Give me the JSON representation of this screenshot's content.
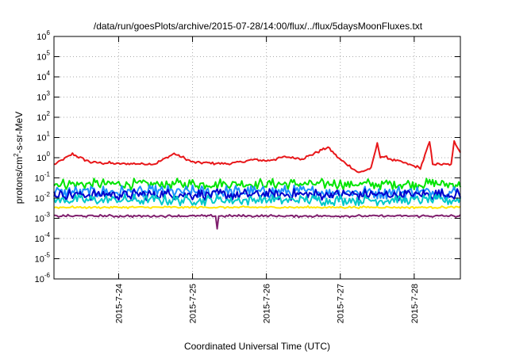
{
  "chart_data": {
    "type": "line",
    "title": "/data/run/goesPlots/archive/2015-07-28/14:00/flux/../flux/5daysMoonFluxes.txt",
    "xlabel": "Coordinated Universal Time (UTC)",
    "ylabel": {
      "pre": "protons/cm",
      "sup": "2",
      "post": "-s-sr-MeV"
    },
    "yscale": "log",
    "ylim": [
      1e-06,
      1000000.0
    ],
    "yticks": [
      {
        "base": "10",
        "exp": "-6"
      },
      {
        "base": "10",
        "exp": "-5"
      },
      {
        "base": "10",
        "exp": "-4"
      },
      {
        "base": "10",
        "exp": "-3"
      },
      {
        "base": "10",
        "exp": "-2"
      },
      {
        "base": "10",
        "exp": "-1"
      },
      {
        "base": "10",
        "exp": "0"
      },
      {
        "base": "10",
        "exp": "1"
      },
      {
        "base": "10",
        "exp": "2"
      },
      {
        "base": "10",
        "exp": "3"
      },
      {
        "base": "10",
        "exp": "4"
      },
      {
        "base": "10",
        "exp": "5"
      },
      {
        "base": "10",
        "exp": "6"
      }
    ],
    "xlim": [
      "2015-07-23T03:00",
      "2015-07-28T15:00"
    ],
    "xticks": [
      "2015-7-24",
      "2015-7-25",
      "2015-7-26",
      "2015-7-27",
      "2015-7-28"
    ],
    "grid": true,
    "legend": "none",
    "series": [
      {
        "color": "#e8171a",
        "base": 0.5,
        "noise": 0.09,
        "period": 4,
        "points": [
          [
            "2015-07-23T03:00",
            0.45
          ],
          [
            "2015-07-23T09:00",
            1.5
          ],
          [
            "2015-07-23T15:00",
            0.6
          ],
          [
            "2015-07-24T00:00",
            0.5
          ],
          [
            "2015-07-24T12:00",
            0.5
          ],
          [
            "2015-07-24T18:00",
            1.6
          ],
          [
            "2015-07-25T00:00",
            0.6
          ],
          [
            "2015-07-25T12:00",
            0.5
          ],
          [
            "2015-07-25T20:00",
            0.8
          ],
          [
            "2015-07-26T00:00",
            0.7
          ],
          [
            "2015-07-26T06:00",
            1.1
          ],
          [
            "2015-07-26T12:00",
            0.9
          ],
          [
            "2015-07-26T18:00",
            2.5
          ],
          [
            "2015-07-26T20:00",
            3.3
          ],
          [
            "2015-07-27T00:00",
            0.8
          ],
          [
            "2015-07-27T06:00",
            0.18
          ],
          [
            "2015-07-27T10:00",
            0.3
          ],
          [
            "2015-07-27T12:00",
            5.0
          ],
          [
            "2015-07-27T13:00",
            1.2
          ],
          [
            "2015-07-27T20:00",
            0.6
          ],
          [
            "2015-07-28T02:00",
            0.3
          ],
          [
            "2015-07-28T05:00",
            6.0
          ],
          [
            "2015-07-28T06:00",
            0.5
          ],
          [
            "2015-07-28T12:00",
            0.45
          ],
          [
            "2015-07-28T13:00",
            6.0
          ],
          [
            "2015-07-28T15:00",
            2.0
          ]
        ]
      },
      {
        "color": "#00e400",
        "base": 0.05,
        "noise": 0.28,
        "period": 2
      },
      {
        "color": "#1c8fff",
        "base": 0.02,
        "noise": 0.35,
        "period": 2
      },
      {
        "color": "#0000cc",
        "base": 0.015,
        "noise": 0.3,
        "period": 2
      },
      {
        "color": "#00c8c8",
        "base": 0.008,
        "noise": 0.28,
        "period": 2
      },
      {
        "color": "#ffe600",
        "base": 0.0035,
        "noise": 0.06,
        "period": 3
      },
      {
        "color": "#80206e",
        "base": 0.0013,
        "noise": 0.07,
        "period": 3
      }
    ]
  }
}
